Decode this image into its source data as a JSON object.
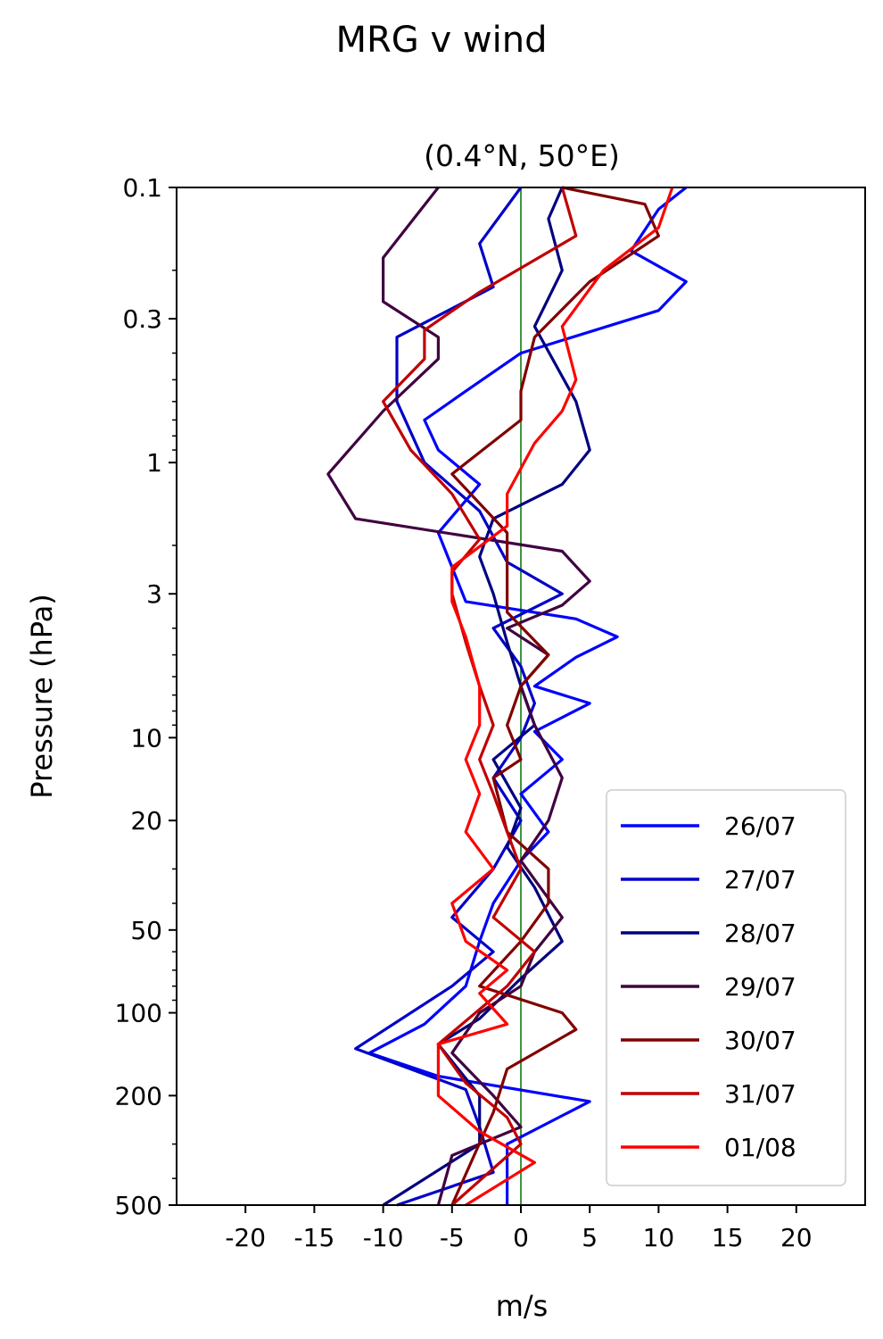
{
  "figure": {
    "title": "MRG v wind"
  },
  "chart_data": {
    "type": "line",
    "title": "MRG v wind",
    "subtitle": "(0.4°N, 50°E)",
    "xlabel": "m/s",
    "ylabel": "Pressure (hPa)",
    "xlim": [
      -25,
      25
    ],
    "xticks": [
      -20,
      -15,
      -10,
      -5,
      0,
      5,
      10,
      15,
      20
    ],
    "xtick_labels": [
      "-20",
      "-15",
      "-10",
      "-5",
      "0",
      "5",
      "10",
      "15",
      "20"
    ],
    "ylim": [
      500,
      0.1
    ],
    "yscale": "log",
    "yticks": [
      0.1,
      0.3,
      1,
      3,
      10,
      20,
      50,
      100,
      200,
      500
    ],
    "ytick_labels": [
      "0.1",
      "0.3",
      "1",
      "3",
      "10",
      "20",
      "50",
      "100",
      "200",
      "500"
    ],
    "reference_line": {
      "x": 0,
      "color": "#007000"
    },
    "legend_position": "lower-right",
    "series": [
      {
        "name": "26/07",
        "color": "#0000ff",
        "points": [
          [
            12,
            0.1
          ],
          [
            10,
            0.12
          ],
          [
            8,
            0.17
          ],
          [
            12,
            0.22
          ],
          [
            10,
            0.28
          ],
          [
            0,
            0.4
          ],
          [
            -4,
            0.55
          ],
          [
            -7,
            0.7
          ],
          [
            -6,
            0.9
          ],
          [
            -3,
            1.2
          ],
          [
            -6,
            1.8
          ],
          [
            -5,
            2.4
          ],
          [
            -4,
            3.2
          ],
          [
            4,
            3.7
          ],
          [
            7,
            4.3
          ],
          [
            4,
            5.1
          ],
          [
            1,
            6.5
          ],
          [
            5,
            7.5
          ],
          [
            1,
            9.5
          ],
          [
            3,
            12
          ],
          [
            0,
            16
          ],
          [
            2,
            22
          ],
          [
            0,
            28
          ],
          [
            -2,
            40
          ],
          [
            -3,
            55
          ],
          [
            -4,
            80
          ],
          [
            -7,
            110
          ],
          [
            -11,
            140
          ],
          [
            -6,
            170
          ],
          [
            5,
            210
          ],
          [
            -1,
            300
          ],
          [
            -1,
            500
          ]
        ]
      },
      {
        "name": "27/07",
        "color": "#0000c8",
        "points": [
          [
            0,
            0.1
          ],
          [
            -3,
            0.16
          ],
          [
            -2,
            0.23
          ],
          [
            -9,
            0.35
          ],
          [
            -9,
            0.6
          ],
          [
            -7,
            1.0
          ],
          [
            -3,
            1.5
          ],
          [
            -1,
            2.3
          ],
          [
            3,
            3.0
          ],
          [
            -2,
            4.0
          ],
          [
            0,
            5.5
          ],
          [
            1,
            7.5
          ],
          [
            0,
            10
          ],
          [
            -2,
            14
          ],
          [
            0,
            20
          ],
          [
            -2,
            30
          ],
          [
            -5,
            45
          ],
          [
            -2,
            60
          ],
          [
            -5,
            80
          ],
          [
            -12,
            135
          ],
          [
            -4,
            190
          ],
          [
            -3,
            260
          ],
          [
            -2,
            380
          ],
          [
            -9,
            500
          ]
        ]
      },
      {
        "name": "28/07",
        "color": "#000080",
        "points": [
          [
            3,
            0.1
          ],
          [
            2,
            0.13
          ],
          [
            3,
            0.2
          ],
          [
            1,
            0.32
          ],
          [
            4,
            0.6
          ],
          [
            5,
            0.9
          ],
          [
            3,
            1.2
          ],
          [
            -2,
            1.6
          ],
          [
            -3,
            2.2
          ],
          [
            -2,
            3.0
          ],
          [
            -1,
            4.5
          ],
          [
            0,
            6.5
          ],
          [
            1,
            9
          ],
          [
            -2,
            12
          ],
          [
            0,
            18
          ],
          [
            -1,
            25
          ],
          [
            1,
            35
          ],
          [
            3,
            55
          ],
          [
            0,
            75
          ],
          [
            -3,
            105
          ],
          [
            -6,
            130
          ],
          [
            -3,
            200
          ],
          [
            -3,
            300
          ],
          [
            -10,
            500
          ]
        ]
      },
      {
        "name": "29/07",
        "color": "#400040",
        "points": [
          [
            -6,
            0.1
          ],
          [
            -10,
            0.18
          ],
          [
            -10,
            0.26
          ],
          [
            -6,
            0.35
          ],
          [
            -6,
            0.42
          ],
          [
            -10,
            0.65
          ],
          [
            -14,
            1.1
          ],
          [
            -12,
            1.6
          ],
          [
            3,
            2.1
          ],
          [
            5,
            2.7
          ],
          [
            3,
            3.3
          ],
          [
            -1,
            4.0
          ],
          [
            2,
            5.0
          ],
          [
            0,
            6.5
          ],
          [
            1,
            9
          ],
          [
            3,
            14
          ],
          [
            2,
            20
          ],
          [
            0,
            28
          ],
          [
            3,
            45
          ],
          [
            1,
            60
          ],
          [
            0,
            80
          ],
          [
            -3,
            100
          ],
          [
            -5,
            140
          ],
          [
            -2,
            200
          ],
          [
            0,
            260
          ],
          [
            -5,
            330
          ],
          [
            -6,
            500
          ]
        ]
      },
      {
        "name": "30/07",
        "color": "#800000",
        "points": [
          [
            3,
            0.1
          ],
          [
            9,
            0.115
          ],
          [
            10,
            0.15
          ],
          [
            5,
            0.22
          ],
          [
            1,
            0.35
          ],
          [
            0,
            0.55
          ],
          [
            0,
            0.7
          ],
          [
            -5,
            1.1
          ],
          [
            -1,
            1.8
          ],
          [
            -1,
            2.5
          ],
          [
            -1,
            3.5
          ],
          [
            2,
            5.0
          ],
          [
            0,
            6.5
          ],
          [
            -1,
            9
          ],
          [
            0,
            12
          ],
          [
            -2,
            14
          ],
          [
            -1,
            22
          ],
          [
            2,
            30
          ],
          [
            2,
            40
          ],
          [
            0,
            55
          ],
          [
            -3,
            80
          ],
          [
            3,
            100
          ],
          [
            4,
            115
          ],
          [
            -1,
            160
          ],
          [
            -2,
            230
          ],
          [
            -5,
            500
          ]
        ]
      },
      {
        "name": "31/07",
        "color": "#c00000",
        "points": [
          [
            3,
            0.1
          ],
          [
            4,
            0.15
          ],
          [
            -3,
            0.24
          ],
          [
            -7,
            0.33
          ],
          [
            -7,
            0.42
          ],
          [
            -10,
            0.6
          ],
          [
            -8,
            0.9
          ],
          [
            -5,
            1.3
          ],
          [
            -3,
            1.9
          ],
          [
            -5,
            2.5
          ],
          [
            -5,
            3.0
          ],
          [
            -4,
            4.5
          ],
          [
            -3,
            6.5
          ],
          [
            -2,
            9
          ],
          [
            -3,
            12
          ],
          [
            -2,
            16
          ],
          [
            -1,
            22
          ],
          [
            0,
            30
          ],
          [
            -2,
            45
          ],
          [
            1,
            60
          ],
          [
            -1,
            80
          ],
          [
            -6,
            130
          ],
          [
            -4,
            180
          ],
          [
            -1,
            240
          ],
          [
            0,
            300
          ],
          [
            -5,
            500
          ]
        ]
      },
      {
        "name": "01/08",
        "color": "#ff0000",
        "points": [
          [
            11,
            0.1
          ],
          [
            10,
            0.14
          ],
          [
            6,
            0.2
          ],
          [
            3,
            0.32
          ],
          [
            4,
            0.5
          ],
          [
            3,
            0.65
          ],
          [
            1,
            0.85
          ],
          [
            -1,
            1.3
          ],
          [
            -1,
            1.7
          ],
          [
            -5,
            2.4
          ],
          [
            -5,
            3.2
          ],
          [
            -4,
            4.3
          ],
          [
            -3,
            6.5
          ],
          [
            -3,
            9
          ],
          [
            -4,
            12
          ],
          [
            -3,
            16
          ],
          [
            -4,
            22
          ],
          [
            -2,
            30
          ],
          [
            -5,
            40
          ],
          [
            -4,
            55
          ],
          [
            -1,
            70
          ],
          [
            -3,
            85
          ],
          [
            -1,
            110
          ],
          [
            -6,
            130
          ],
          [
            -6,
            200
          ],
          [
            -3,
            270
          ],
          [
            1,
            350
          ],
          [
            -4,
            500
          ]
        ]
      }
    ]
  }
}
